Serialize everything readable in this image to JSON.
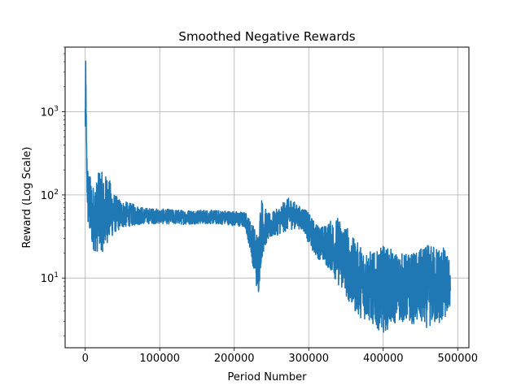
{
  "chart_data": {
    "type": "line",
    "title": "Smoothed Negative Rewards",
    "xlabel": "Period Number",
    "ylabel": "Reward (Log Scale)",
    "yscale": "log",
    "xlim": [
      -27000,
      515000
    ],
    "ylim": [
      1.45,
      6000
    ],
    "grid": true,
    "series_color": "#1f77b4",
    "x_ticks": [
      {
        "value": 0,
        "label": "0"
      },
      {
        "value": 100000,
        "label": "100000"
      },
      {
        "value": 200000,
        "label": "200000"
      },
      {
        "value": 300000,
        "label": "300000"
      },
      {
        "value": 400000,
        "label": "400000"
      },
      {
        "value": 500000,
        "label": "500000"
      }
    ],
    "y_ticks": [
      {
        "value": 10,
        "base": "10",
        "exp": "1"
      },
      {
        "value": 100,
        "base": "10",
        "exp": "2"
      },
      {
        "value": 1000,
        "base": "10",
        "exp": "3"
      }
    ],
    "series": [
      {
        "values_description_envelope": true,
        "x": [
          0,
          500,
          1000,
          1500,
          2500,
          4000,
          7000,
          10000,
          15000,
          20000,
          25000,
          30000,
          35000,
          40000,
          50000,
          60000,
          80000,
          100000,
          130000,
          160000,
          190000,
          215000,
          222000,
          228000,
          232000,
          236000,
          240000,
          245000,
          255000,
          265000,
          275000,
          285000,
          295000,
          300000,
          310000,
          320000,
          330000,
          340000,
          350000,
          360000,
          370000,
          380000,
          390000,
          400000,
          420000,
          440000,
          460000,
          480000,
          490000
        ],
        "high": [
          2100,
          4300,
          3000,
          600,
          300,
          200,
          170,
          130,
          150,
          220,
          160,
          190,
          130,
          100,
          85,
          80,
          70,
          68,
          66,
          66,
          65,
          62,
          50,
          40,
          35,
          100,
          75,
          60,
          65,
          80,
          95,
          75,
          70,
          60,
          45,
          42,
          50,
          55,
          45,
          30,
          25,
          22,
          20,
          25,
          20,
          20,
          25,
          25,
          16
        ],
        "low": [
          300,
          500,
          1000,
          200,
          80,
          35,
          28,
          22,
          20,
          22,
          20,
          27,
          30,
          35,
          40,
          42,
          45,
          45,
          44,
          45,
          44,
          40,
          20,
          10,
          5.5,
          15,
          22,
          28,
          32,
          35,
          38,
          40,
          35,
          25,
          18,
          15,
          12,
          8,
          6,
          4,
          3.3,
          3.0,
          2.5,
          2.2,
          3.0,
          2.8,
          2.5,
          2.8,
          4.3
        ]
      }
    ]
  }
}
